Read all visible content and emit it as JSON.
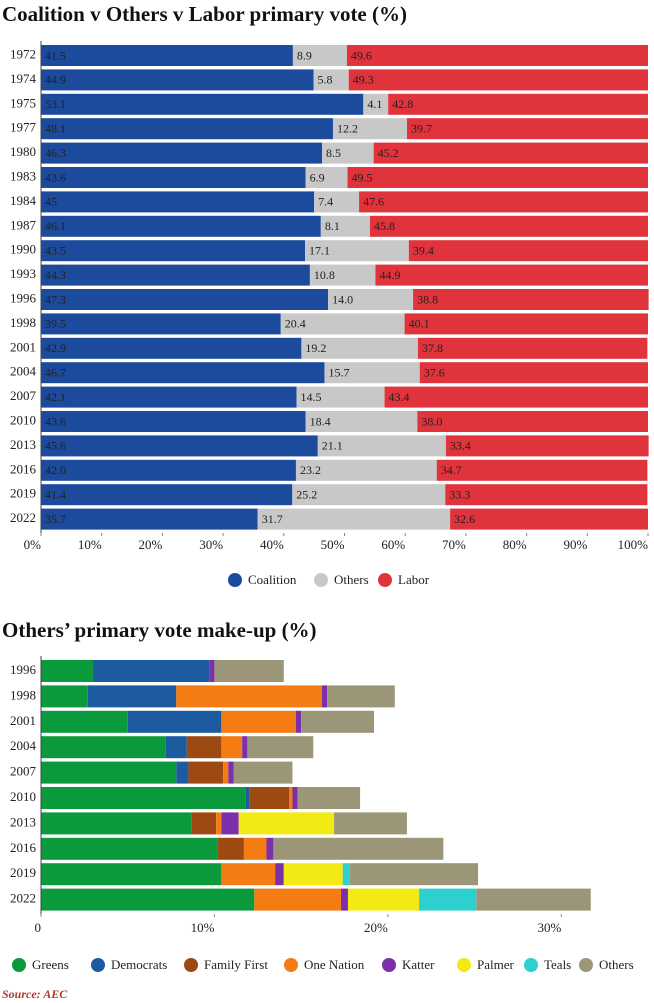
{
  "chart_data": [
    {
      "type": "stacked-bar",
      "title": "Coalition v Others v Labor primary vote (%)",
      "categories": [
        "1972",
        "1974",
        "1975",
        "1977",
        "1980",
        "1983",
        "1984",
        "1987",
        "1990",
        "1993",
        "1996",
        "1998",
        "2001",
        "2004",
        "2007",
        "2010",
        "2013",
        "2016",
        "2019",
        "2022"
      ],
      "series": [
        {
          "name": "Coalition",
          "color": "#1c4a9c",
          "label_color": "#ffffff",
          "values": [
            41.5,
            44.9,
            53.1,
            48.1,
            46.3,
            43.6,
            45,
            46.1,
            43.5,
            44.3,
            47.3,
            39.5,
            42.9,
            46.7,
            42.1,
            43.6,
            45.6,
            42.0,
            41.4,
            35.7
          ],
          "value_labels": [
            "41.5",
            "44.9",
            "53.1",
            "48.1",
            "46.3",
            "43.6",
            "45",
            "46.1",
            "43.5",
            "44.3",
            "47.3",
            "39.5",
            "42.9",
            "46.7",
            "42.1",
            "43.6",
            "45.6",
            "42.0",
            "41.4",
            "35.7"
          ]
        },
        {
          "name": "Others",
          "color": "#c8c8c8",
          "label_color": "#222222",
          "values": [
            8.9,
            5.8,
            4.1,
            12.2,
            8.5,
            6.9,
            7.4,
            8.1,
            17.1,
            10.8,
            14.0,
            20.4,
            19.2,
            15.7,
            14.5,
            18.4,
            21.1,
            23.2,
            25.2,
            31.7
          ],
          "value_labels": [
            "8.9",
            "5.8",
            "4.1",
            "12.2",
            "8.5",
            "6.9",
            "7.4",
            "8.1",
            "17.1",
            "10.8",
            "14.0",
            "20.4",
            "19.2",
            "15.7",
            "14.5",
            "18.4",
            "21.1",
            "23.2",
            "25.2",
            "31.7"
          ]
        },
        {
          "name": "Labor",
          "color": "#e0333c",
          "label_color": "#ffffff",
          "values": [
            49.6,
            49.3,
            42.8,
            39.7,
            45.2,
            49.5,
            47.6,
            45.8,
            39.4,
            44.9,
            38.8,
            40.1,
            37.8,
            37.6,
            43.4,
            38.0,
            33.4,
            34.7,
            33.3,
            32.6
          ],
          "value_labels": [
            "49.6",
            "49.3",
            "42.8",
            "39.7",
            "45.2",
            "49.5",
            "47.6",
            "45.8",
            "39.4",
            "44.9",
            "38.8",
            "40.1",
            "37.8",
            "37.6",
            "43.4",
            "38.0",
            "33.4",
            "34.7",
            "33.3",
            "32.6"
          ]
        }
      ],
      "xlim": [
        0,
        100
      ],
      "xticks": [
        {
          "value": 0,
          "label": "0%"
        },
        {
          "value": 10,
          "label": "10%"
        },
        {
          "value": 20,
          "label": "20%"
        },
        {
          "value": 30,
          "label": "30%"
        },
        {
          "value": 40,
          "label": "40%"
        },
        {
          "value": 50,
          "label": "50%"
        },
        {
          "value": 60,
          "label": "60%"
        },
        {
          "value": 70,
          "label": "70%"
        },
        {
          "value": 80,
          "label": "80%"
        },
        {
          "value": 90,
          "label": "90%"
        },
        {
          "value": 100,
          "label": "100%"
        }
      ],
      "legend": "bottom"
    },
    {
      "type": "stacked-bar",
      "title": "Others’ primary vote make-up (%)",
      "categories": [
        "1996",
        "1998",
        "2001",
        "2004",
        "2007",
        "2010",
        "2013",
        "2016",
        "2019",
        "2022"
      ],
      "series": [
        {
          "name": "Greens",
          "color": "#0a9a3c",
          "values": [
            3.0,
            2.7,
            5.0,
            7.2,
            7.8,
            11.8,
            8.7,
            10.2,
            10.4,
            12.3
          ]
        },
        {
          "name": "Democrats",
          "color": "#1d5ba0",
          "values": [
            6.7,
            5.1,
            5.4,
            1.2,
            0.7,
            0.2,
            null,
            null,
            null,
            null
          ]
        },
        {
          "name": "Family First",
          "color": "#9c4a12",
          "values": [
            null,
            null,
            null,
            2.0,
            2.0,
            2.3,
            1.4,
            1.5,
            null,
            null
          ]
        },
        {
          "name": "One Nation",
          "color": "#f57c12",
          "values": [
            null,
            8.4,
            4.3,
            1.2,
            0.3,
            0.2,
            0.3,
            1.3,
            3.1,
            5.0
          ]
        },
        {
          "name": "Katter",
          "color": "#7b2fa8",
          "values": [
            0.3,
            0.3,
            0.3,
            0.3,
            0.3,
            0.3,
            1.0,
            0.4,
            0.5,
            0.4
          ]
        },
        {
          "name": "Palmer",
          "color": "#f2ea12",
          "values": [
            null,
            null,
            null,
            null,
            null,
            null,
            5.5,
            null,
            3.4,
            4.1
          ]
        },
        {
          "name": "Teals",
          "color": "#2dd0cf",
          "values": [
            null,
            null,
            null,
            null,
            null,
            null,
            null,
            null,
            0.4,
            3.3
          ]
        },
        {
          "name": "Others",
          "color": "#9c9678",
          "values": [
            4.0,
            3.9,
            4.2,
            3.8,
            3.4,
            3.6,
            4.2,
            9.8,
            7.4,
            6.6
          ]
        }
      ],
      "xlim": [
        0,
        35
      ],
      "xticks": [
        0,
        {
          "value": 10,
          "label": "10%"
        },
        {
          "value": 20,
          "label": "20%"
        },
        {
          "value": 30,
          "label": "30%"
        }
      ],
      "legend": "bottom"
    }
  ],
  "source": "Source: AEC"
}
